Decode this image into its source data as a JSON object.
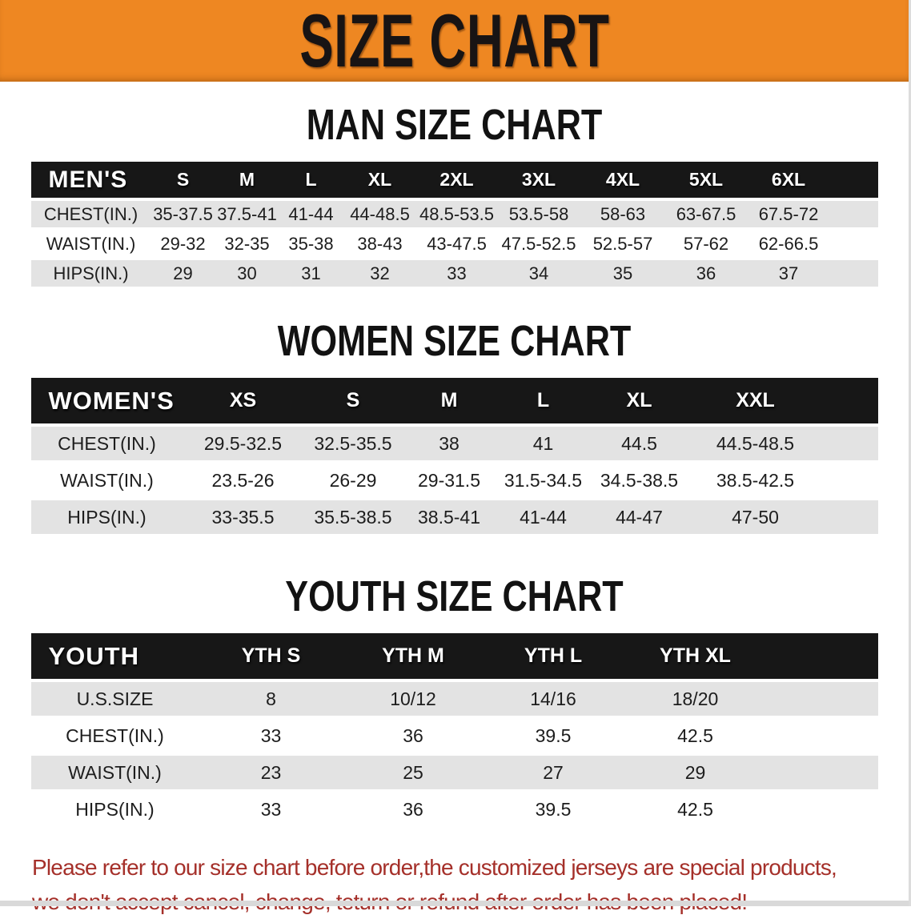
{
  "banner": {
    "title": "SIZE CHART"
  },
  "colors": {
    "banner_orange": "#ee8722",
    "table_header_black": "#171717",
    "row_stripe_gray": "#e3e3e3",
    "disclaimer_red": "#a5302a"
  },
  "sections": {
    "men": {
      "heading": "MAN SIZE CHART",
      "table": {
        "label": "MEN'S",
        "columns": [
          "S",
          "M",
          "L",
          "XL",
          "2XL",
          "3XL",
          "4XL",
          "5XL",
          "6XL"
        ],
        "rows": [
          {
            "label": "CHEST(IN.)",
            "values": [
              "35-37.5",
              "37.5-41",
              "41-44",
              "44-48.5",
              "48.5-53.5",
              "53.5-58",
              "58-63",
              "63-67.5",
              "67.5-72"
            ]
          },
          {
            "label": "WAIST(IN.)",
            "values": [
              "29-32",
              "32-35",
              "35-38",
              "38-43",
              "43-47.5",
              "47.5-52.5",
              "52.5-57",
              "57-62",
              "62-66.5"
            ]
          },
          {
            "label": "HIPS(IN.)",
            "values": [
              "29",
              "30",
              "31",
              "32",
              "33",
              "34",
              "35",
              "36",
              "37"
            ]
          }
        ]
      }
    },
    "women": {
      "heading": "WOMEN SIZE CHART",
      "table": {
        "label": "WOMEN'S",
        "columns": [
          "XS",
          "S",
          "M",
          "L",
          "XL",
          "XXL"
        ],
        "rows": [
          {
            "label": "CHEST(IN.)",
            "values": [
              "29.5-32.5",
              "32.5-35.5",
              "38",
              "41",
              "44.5",
              "44.5-48.5"
            ]
          },
          {
            "label": "WAIST(IN.)",
            "values": [
              "23.5-26",
              "26-29",
              "29-31.5",
              "31.5-34.5",
              "34.5-38.5",
              "38.5-42.5"
            ]
          },
          {
            "label": "HIPS(IN.)",
            "values": [
              "33-35.5",
              "35.5-38.5",
              "38.5-41",
              "41-44",
              "44-47",
              "47-50"
            ]
          }
        ]
      }
    },
    "youth": {
      "heading": "YOUTH SIZE CHART",
      "table": {
        "label": "YOUTH",
        "columns": [
          "YTH S",
          "YTH M",
          "YTH L",
          "YTH XL"
        ],
        "rows": [
          {
            "label": "U.S.SIZE",
            "values": [
              "8",
              "10/12",
              "14/16",
              "18/20"
            ]
          },
          {
            "label": "CHEST(IN.)",
            "values": [
              "33",
              "36",
              "39.5",
              "42.5"
            ]
          },
          {
            "label": "WAIST(IN.)",
            "values": [
              "23",
              "25",
              "27",
              "29"
            ]
          },
          {
            "label": "HIPS(IN.)",
            "values": [
              "33",
              "36",
              "39.5",
              "42.5"
            ]
          }
        ]
      }
    }
  },
  "disclaimer": {
    "line1": "Please refer to our size chart before order,the customized jerseys are special products,",
    "line2": "we don't accept cancel, change, teturn or refund after order has been placed!"
  }
}
